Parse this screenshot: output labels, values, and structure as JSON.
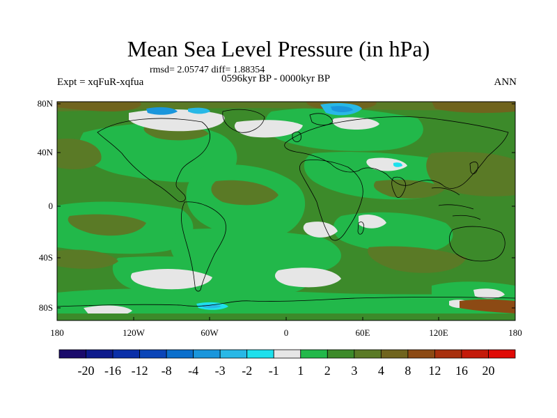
{
  "title": "Mean Sea Level Pressure (in hPa)",
  "stats": "rmsd= 2.05747 diff= 1.88354",
  "experiment": "Expt = xqFuR-xqfua",
  "period": "0596kyr BP - 0000kyr BP",
  "season": "ANN",
  "map": {
    "lat_labels": [
      "80N",
      "40N",
      "0",
      "40S",
      "80S"
    ],
    "lon_labels": [
      "180",
      "120W",
      "60W",
      "0",
      "60E",
      "120E",
      "180"
    ],
    "projection": "cylindrical equidistant, 180W to 180E, 90S to 90N",
    "background_class": "2-3"
  },
  "colorbar": {
    "labels": [
      "-20",
      "-16",
      "-12",
      "-8",
      "-4",
      "-3",
      "-2",
      "-1",
      "1",
      "2",
      "3",
      "4",
      "8",
      "12",
      "16",
      "20"
    ],
    "colors": [
      "#1a0a6b",
      "#0d1a8c",
      "#0a2fa8",
      "#0a45b8",
      "#0a6fcc",
      "#1a96dc",
      "#28b8e6",
      "#1ee0ec",
      "#e6e6e6",
      "#22b84a",
      "#3c8a2a",
      "#5a7a26",
      "#70641e",
      "#8c4a14",
      "#a8300e",
      "#c41a0a",
      "#e00a06"
    ]
  }
}
